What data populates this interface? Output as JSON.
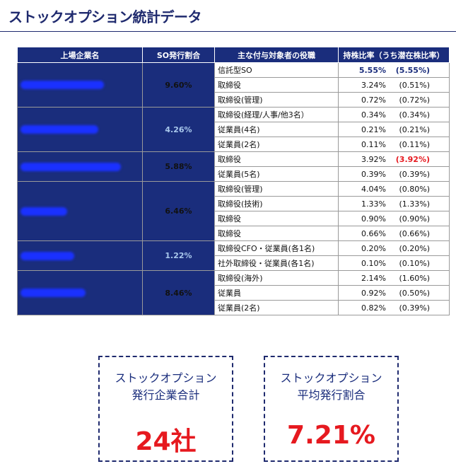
{
  "page": {
    "title": "ストックオプション統計データ"
  },
  "table": {
    "headers": [
      "上場企業名",
      "SO発行割合",
      "主な付与対象者の役職",
      "持株比率（うち潜在株比率）"
    ],
    "groups": [
      {
        "rate": "9.60%",
        "light": false,
        "redact_width": 118,
        "rows": [
          {
            "role": "信託型SO",
            "ratio": "5.55%",
            "potential": "(5.55%)",
            "bold": true
          },
          {
            "role": "取締役",
            "ratio": "3.24%",
            "potential": "(0.51%)"
          },
          {
            "role": "取締役(管理)",
            "ratio": "0.72%",
            "potential": "(0.72%)"
          }
        ]
      },
      {
        "rate": "4.26%",
        "light": true,
        "redact_width": 110,
        "rows": [
          {
            "role": "取締役(経理/人事/他3名）",
            "ratio": "0.34%",
            "potential": "(0.34%)"
          },
          {
            "role": "従業員(4名)",
            "ratio": "0.21%",
            "potential": "(0.21%)"
          },
          {
            "role": "従業員(2名)",
            "ratio": "0.11%",
            "potential": "(0.11%)"
          }
        ]
      },
      {
        "rate": "5.88%",
        "light": false,
        "redact_width": 142,
        "rows": [
          {
            "role": "取締役",
            "ratio": "3.92%",
            "potential": "(3.92%)",
            "potential_red": true
          },
          {
            "role": "従業員(5名)",
            "ratio": "0.39%",
            "potential": "(0.39%)"
          }
        ]
      },
      {
        "rate": "6.46%",
        "light": false,
        "redact_width": 66,
        "rows": [
          {
            "role": "取締役(管理)",
            "ratio": "4.04%",
            "potential": "(0.80%)"
          },
          {
            "role": "取締役(技術)",
            "ratio": "1.33%",
            "potential": "(1.33%)"
          },
          {
            "role": "取締役",
            "ratio": "0.90%",
            "potential": "(0.90%)"
          },
          {
            "role": "取締役",
            "ratio": "0.66%",
            "potential": "(0.66%)"
          }
        ]
      },
      {
        "rate": "1.22%",
        "light": true,
        "redact_width": 76,
        "rows": [
          {
            "role": "取締役CFO・従業員(各1名)",
            "ratio": "0.20%",
            "potential": "(0.20%)"
          },
          {
            "role": "社外取締役・従業員(各1名)",
            "ratio": "0.10%",
            "potential": "(0.10%)"
          }
        ]
      },
      {
        "rate": "8.46%",
        "light": false,
        "redact_width": 92,
        "rows": [
          {
            "role": "取締役(海外)",
            "ratio": "2.14%",
            "potential": "(1.60%)"
          },
          {
            "role": "従業員",
            "ratio": "0.92%",
            "potential": "(0.50%)"
          },
          {
            "role": "従業員(2名)",
            "ratio": "0.82%",
            "potential": "(0.39%)"
          }
        ]
      }
    ]
  },
  "cards": [
    {
      "label_line1": "ストックオプション",
      "label_line2": "発行企業合計",
      "value": "24社"
    },
    {
      "label_line1": "ストックオプション",
      "label_line2": "平均発行割合",
      "value": "7.21%"
    }
  ]
}
